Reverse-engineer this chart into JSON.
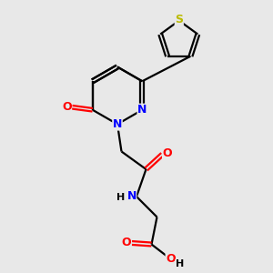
{
  "background_color": "#e8e8e8",
  "bond_color": "#000000",
  "N_color": "#0000ff",
  "O_color": "#ff0000",
  "S_color": "#bbbb00",
  "line_width": 1.6,
  "figsize": [
    3.0,
    3.0
  ],
  "dpi": 100,
  "xlim": [
    0,
    10
  ],
  "ylim": [
    0,
    10
  ]
}
